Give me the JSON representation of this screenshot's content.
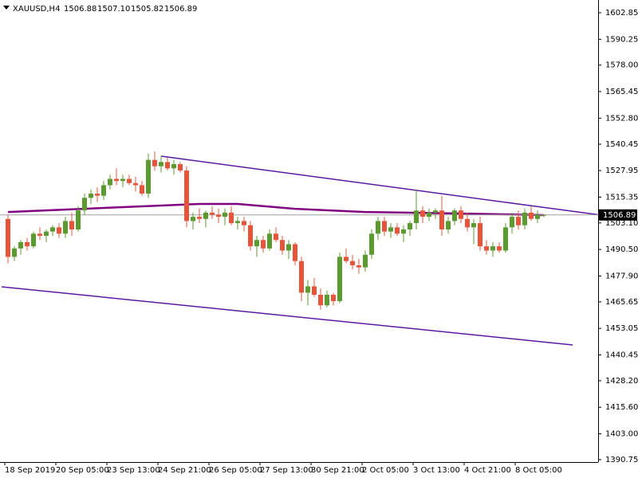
{
  "chart_data": {
    "type": "candlestick",
    "header": [
      "XAUUSD,H4",
      "1506.88",
      "1507.10",
      "1505.82",
      "1506.89"
    ],
    "up_color": "#5b9a2e",
    "down_color": "#e8543a",
    "current_line_color": "#a0a0a0",
    "categories": [
      "18 Sep 2019",
      null,
      null,
      null,
      null,
      null,
      null,
      null,
      "20 Sep 05:00",
      null,
      null,
      null,
      null,
      null,
      null,
      null,
      "23 Sep 13:00",
      null,
      null,
      null,
      null,
      null,
      null,
      null,
      "24 Sep 21:00",
      null,
      null,
      null,
      null,
      null,
      null,
      null,
      "26 Sep 05:00",
      null,
      null,
      null,
      null,
      null,
      null,
      null,
      "27 Sep 13:00",
      null,
      null,
      null,
      null,
      null,
      null,
      null,
      "30 Sep 21:00",
      null,
      null,
      null,
      null,
      null,
      null,
      null,
      "2 Oct 05:00",
      null,
      null,
      null,
      null,
      null,
      null,
      null,
      "3 Oct 13:00",
      null,
      null,
      null,
      null,
      null,
      null,
      null,
      "4 Oct 21:00",
      null,
      null,
      null,
      null,
      null,
      null,
      null,
      "8 Oct 05:00",
      null,
      null,
      null,
      null
    ],
    "open": [
      1505,
      1487,
      1491,
      1494,
      1492,
      1498,
      1497,
      1499,
      1501,
      1498,
      1504,
      1500,
      1509,
      1515,
      1517,
      1516,
      1521,
      1524,
      1523,
      1524,
      1522,
      1521,
      1517,
      1533,
      1530,
      1532,
      1529,
      1531,
      1528,
      1504,
      1506,
      1505,
      1508,
      1507,
      1506,
      1508,
      1503,
      1504,
      1502,
      1492,
      1495,
      1491,
      1498,
      1495,
      1490,
      1493,
      1485,
      1470,
      1473,
      1469,
      1464,
      1469,
      1466,
      1487,
      1485,
      1483,
      1482,
      1488,
      1498,
      1504,
      1499,
      1501,
      1498,
      1500,
      1503,
      1509,
      1506,
      1508,
      1509,
      1500,
      1504,
      1509,
      1505,
      1501,
      1503,
      1492,
      1490,
      1492,
      1490,
      1501,
      1506,
      1502,
      1508,
      1505,
      1506.88
    ],
    "high": [
      1507,
      1492,
      1495,
      1496,
      1499,
      1501,
      1500,
      1502,
      1503,
      1506,
      1508,
      1511,
      1517,
      1519,
      1520,
      1523,
      1526,
      1529,
      1526,
      1526,
      1525,
      1523,
      1536,
      1537,
      1535,
      1534,
      1533,
      1532,
      1530,
      1508,
      1510,
      1509,
      1511,
      1510,
      1510,
      1511,
      1506,
      1506,
      1504,
      1497,
      1497,
      1500,
      1501,
      1497,
      1495,
      1494,
      1487,
      1476,
      1477,
      1472,
      1471,
      1470,
      1489,
      1491,
      1488,
      1486,
      1490,
      1500,
      1506,
      1506,
      1503,
      1503,
      1502,
      1504,
      1519,
      1511,
      1510,
      1510,
      1516,
      1506,
      1510,
      1511,
      1508,
      1505,
      1506,
      1495,
      1494,
      1494,
      1503,
      1508,
      1509,
      1510,
      1511,
      1509,
      1507.1
    ],
    "low": [
      1484,
      1485,
      1488,
      1490,
      1491,
      1495,
      1494,
      1497,
      1496,
      1496,
      1497,
      1499,
      1507,
      1512,
      1513,
      1514,
      1519,
      1521,
      1520,
      1521,
      1518,
      1516,
      1515,
      1528,
      1527,
      1528,
      1526,
      1527,
      1501,
      1500,
      1503,
      1501,
      1505,
      1503,
      1502,
      1502,
      1500,
      1499,
      1490,
      1487,
      1489,
      1490,
      1494,
      1488,
      1486,
      1483,
      1466,
      1464,
      1468,
      1462,
      1463,
      1464,
      1465,
      1484,
      1481,
      1479,
      1480,
      1486,
      1495,
      1497,
      1496,
      1497,
      1494,
      1497,
      1500,
      1503,
      1504,
      1505,
      1497,
      1498,
      1502,
      1503,
      1499,
      1493,
      1490,
      1488,
      1487,
      1489,
      1489,
      1498,
      1500,
      1500,
      1504,
      1503,
      1505.82
    ],
    "close": [
      1487,
      1491,
      1494,
      1492,
      1498,
      1497,
      1499,
      1501,
      1498,
      1504,
      1500,
      1509,
      1515,
      1517,
      1516,
      1521,
      1524,
      1523,
      1524,
      1522,
      1521,
      1517,
      1533,
      1530,
      1532,
      1529,
      1531,
      1528,
      1504,
      1506,
      1505,
      1508,
      1507,
      1506,
      1508,
      1503,
      1504,
      1502,
      1492,
      1495,
      1491,
      1498,
      1495,
      1490,
      1493,
      1485,
      1470,
      1473,
      1469,
      1464,
      1469,
      1466,
      1487,
      1485,
      1483,
      1482,
      1488,
      1498,
      1504,
      1499,
      1501,
      1498,
      1500,
      1503,
      1509,
      1506,
      1508,
      1509,
      1500,
      1504,
      1509,
      1505,
      1501,
      1503,
      1492,
      1490,
      1492,
      1490,
      1501,
      1506,
      1502,
      1508,
      1505,
      1507,
      1506.89
    ],
    "lines": [
      {
        "color": "#800080",
        "width": 2.5,
        "x": [
          0,
          30,
          36,
          45,
          56,
          70,
          84
        ],
        "values": [
          1508.3,
          1512.1,
          1512.1,
          1509.8,
          1508.3,
          1507.6,
          1506.8
        ]
      },
      {
        "color": "#5a1aa0",
        "width": 1.5,
        "x": [
          24,
          93
        ],
        "values": [
          1534.8,
          1506.8
        ]
      },
      {
        "color": "#5a1aa0",
        "width": 1.5,
        "x": [
          -1,
          88.5
        ],
        "values": [
          1472.8,
          1445.2
        ]
      }
    ],
    "ylim": [
      1389.6,
      1608.9
    ],
    "yticks": [
      1602.85,
      1590.25,
      {
        "value": 1578.0,
        "label": "1578.00"
      },
      1565.45,
      {
        "value": 1552.8,
        "label": "1552.80"
      },
      1540.45,
      1527.95,
      1515.35,
      {
        "value": 1503.1,
        "label": "1503.10"
      },
      {
        "value": 1490.5,
        "label": "1490.50"
      },
      {
        "value": 1477.9,
        "label": "1477.90"
      },
      1465.65,
      1453.05,
      1440.45,
      {
        "value": 1428.2,
        "label": "1428.20"
      },
      {
        "value": 1415.6,
        "label": "1415.60"
      },
      {
        "value": 1403.0,
        "label": "1403.00"
      },
      1390.75
    ]
  }
}
